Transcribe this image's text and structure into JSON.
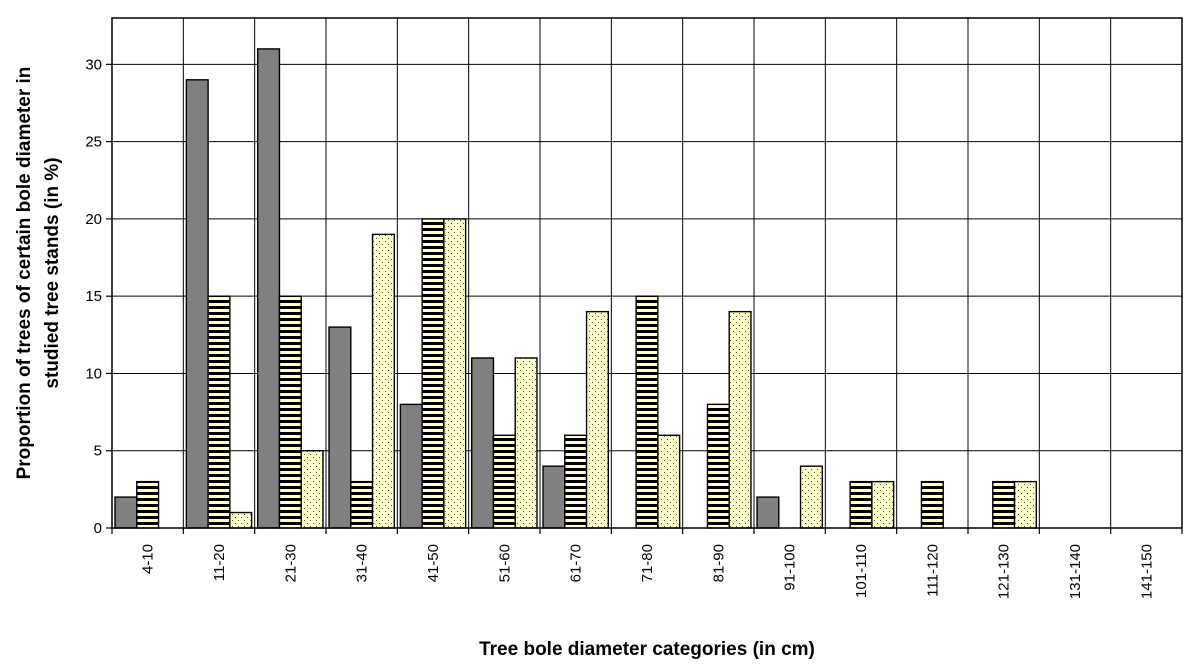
{
  "chart_data": {
    "type": "bar",
    "title": "",
    "xlabel": "Tree bole diameter categories (in cm)",
    "ylabel_lines": [
      "Proportion of trees of certain bole diameter in",
      "studied tree stands (in %)"
    ],
    "ylim": [
      0,
      33
    ],
    "yticks": [
      0,
      5,
      10,
      15,
      20,
      25,
      30
    ],
    "grid": true,
    "legend": "none",
    "categories": [
      "4-10",
      "11-20",
      "21-30",
      "31-40",
      "41-50",
      "51-60",
      "61-70",
      "71-80",
      "81-90",
      "91-100",
      "101-110",
      "111-120",
      "121-130",
      "131-140",
      "141-150"
    ],
    "series": [
      {
        "pattern": "solid-gray",
        "color": "#808080",
        "values": [
          2,
          29,
          31,
          13,
          8,
          11,
          4,
          0,
          0,
          2,
          0,
          0,
          0,
          0,
          0
        ]
      },
      {
        "pattern": "horizontal-stripes",
        "color": "#000000",
        "values": [
          3,
          15,
          15,
          3,
          20,
          6,
          6,
          15,
          8,
          0,
          3,
          3,
          3,
          0,
          0
        ]
      },
      {
        "pattern": "dotted-yellow",
        "color": "#ffffcc",
        "values": [
          0,
          1,
          5,
          19,
          20,
          11,
          14,
          6,
          14,
          4,
          3,
          0,
          3,
          0,
          0
        ]
      }
    ]
  }
}
